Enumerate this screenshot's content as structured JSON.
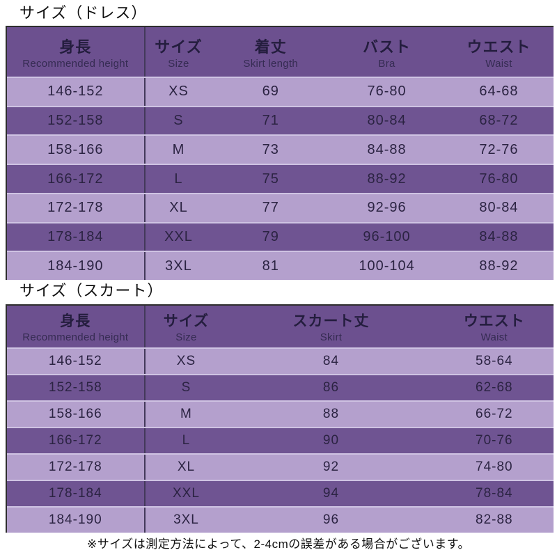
{
  "colors": {
    "header_bg": "#6c508f",
    "row_dark": "#6f5492",
    "row_light": "#b4a0cd",
    "row_separator": "#cfc3e3",
    "column_divider": "#43395a",
    "outer_border": "#2e2e2e",
    "cell_text": "#2b2342",
    "title_text": "#0f0f0f"
  },
  "dress_table": {
    "title": "サイズ（ドレス）",
    "headers": [
      {
        "jp": "身長",
        "en": "Recommended height"
      },
      {
        "jp": "サイズ",
        "en": "Size"
      },
      {
        "jp": "着丈",
        "en": "Skirt length"
      },
      {
        "jp": "バスト",
        "en": "Bra"
      },
      {
        "jp": "ウエスト",
        "en": "Waist"
      }
    ],
    "rows": [
      {
        "height": "146-152",
        "size": "XS",
        "length": "69",
        "bust": "76-80",
        "waist": "64-68"
      },
      {
        "height": "152-158",
        "size": "S",
        "length": "71",
        "bust": "80-84",
        "waist": "68-72"
      },
      {
        "height": "158-166",
        "size": "M",
        "length": "73",
        "bust": "84-88",
        "waist": "72-76"
      },
      {
        "height": "166-172",
        "size": "L",
        "length": "75",
        "bust": "88-92",
        "waist": "76-80"
      },
      {
        "height": "172-178",
        "size": "XL",
        "length": "77",
        "bust": "92-96",
        "waist": "80-84"
      },
      {
        "height": "178-184",
        "size": "XXL",
        "length": "79",
        "bust": "96-100",
        "waist": "84-88"
      },
      {
        "height": "184-190",
        "size": "3XL",
        "length": "81",
        "bust": "100-104",
        "waist": "88-92"
      }
    ]
  },
  "skirt_table": {
    "title": "サイズ（スカート）",
    "headers": [
      {
        "jp": "身長",
        "en": "Recommended height"
      },
      {
        "jp": "サイズ",
        "en": "Size"
      },
      {
        "jp": "スカート丈",
        "en": "Skirt"
      },
      {
        "jp": "ウエスト",
        "en": "Waist"
      }
    ],
    "rows": [
      {
        "height": "146-152",
        "size": "XS",
        "skirt": "84",
        "waist": "58-64"
      },
      {
        "height": "152-158",
        "size": "S",
        "skirt": "86",
        "waist": "62-68"
      },
      {
        "height": "158-166",
        "size": "M",
        "skirt": "88",
        "waist": "66-72"
      },
      {
        "height": "166-172",
        "size": "L",
        "skirt": "90",
        "waist": "70-76"
      },
      {
        "height": "172-178",
        "size": "XL",
        "skirt": "92",
        "waist": "74-80"
      },
      {
        "height": "178-184",
        "size": "XXL",
        "skirt": "94",
        "waist": "78-84"
      },
      {
        "height": "184-190",
        "size": "3XL",
        "skirt": "96",
        "waist": "82-88"
      }
    ]
  },
  "footer": {
    "note": "※サイズは測定方法によって、2-4cmの誤差がある場合がございます。"
  }
}
